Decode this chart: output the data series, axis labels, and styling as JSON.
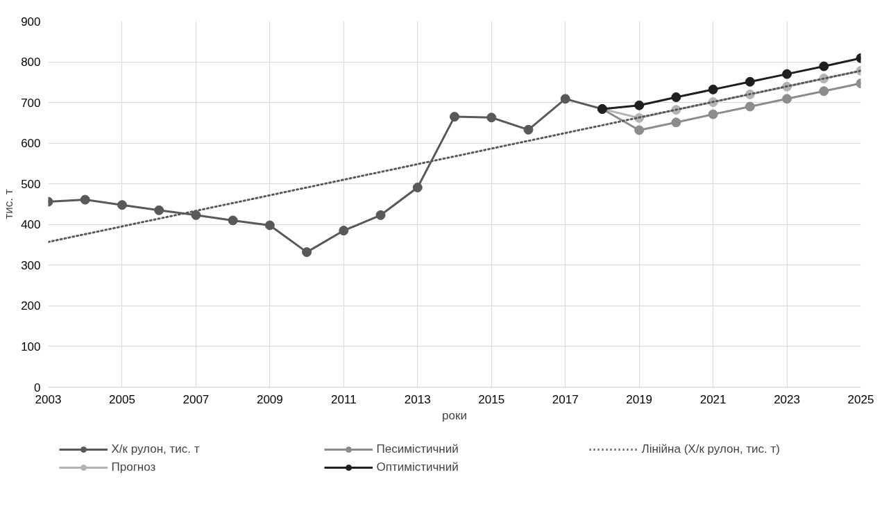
{
  "chart_data": {
    "type": "line",
    "xlabel": "роки",
    "ylabel": "тис. т",
    "xlim": [
      2003,
      2025
    ],
    "xticks": [
      2003,
      2005,
      2007,
      2009,
      2011,
      2013,
      2015,
      2017,
      2019,
      2021,
      2023,
      2025
    ],
    "ylim": [
      0,
      900
    ],
    "yticks": [
      0,
      100,
      200,
      300,
      400,
      500,
      600,
      700,
      800,
      900
    ],
    "grid": true,
    "legend": "bottom",
    "marker": "circle",
    "line_style": "solid",
    "series": [
      {
        "name": "Х/к рулон, тис. т",
        "color": "#595959",
        "x": [
          2003,
          2004,
          2005,
          2006,
          2007,
          2008,
          2009,
          2010,
          2011,
          2012,
          2013,
          2014,
          2015,
          2016,
          2017,
          2018
        ],
        "values": [
          456,
          461,
          448,
          435,
          423,
          410,
          398,
          332,
          385,
          423,
          491,
          665,
          663,
          633,
          709,
          684
        ]
      },
      {
        "name": "Прогноз",
        "color": "#b4b4b4",
        "x": [
          2018,
          2019,
          2020,
          2021,
          2022,
          2023,
          2024,
          2025
        ],
        "values": [
          684,
          662,
          682,
          701,
          720,
          739,
          759,
          778
        ]
      },
      {
        "name": "Песимістичний",
        "color": "#8c8c8c",
        "x": [
          2018,
          2019,
          2020,
          2021,
          2022,
          2023,
          2024,
          2025
        ],
        "values": [
          684,
          632,
          651,
          671,
          690,
          709,
          728,
          747
        ]
      },
      {
        "name": "Оптимістичний",
        "color": "#1f1f1f",
        "x": [
          2018,
          2019,
          2020,
          2021,
          2022,
          2023,
          2024,
          2025
        ],
        "values": [
          684,
          693,
          713,
          732,
          751,
          770,
          789,
          809
        ]
      },
      {
        "name": "Лінійна (Х/к рулон, тис. т)",
        "color": "#595959",
        "x": [
          2003,
          2025
        ],
        "values": [
          357,
          778
        ],
        "marker": "none",
        "line_style": "dotted"
      }
    ]
  }
}
